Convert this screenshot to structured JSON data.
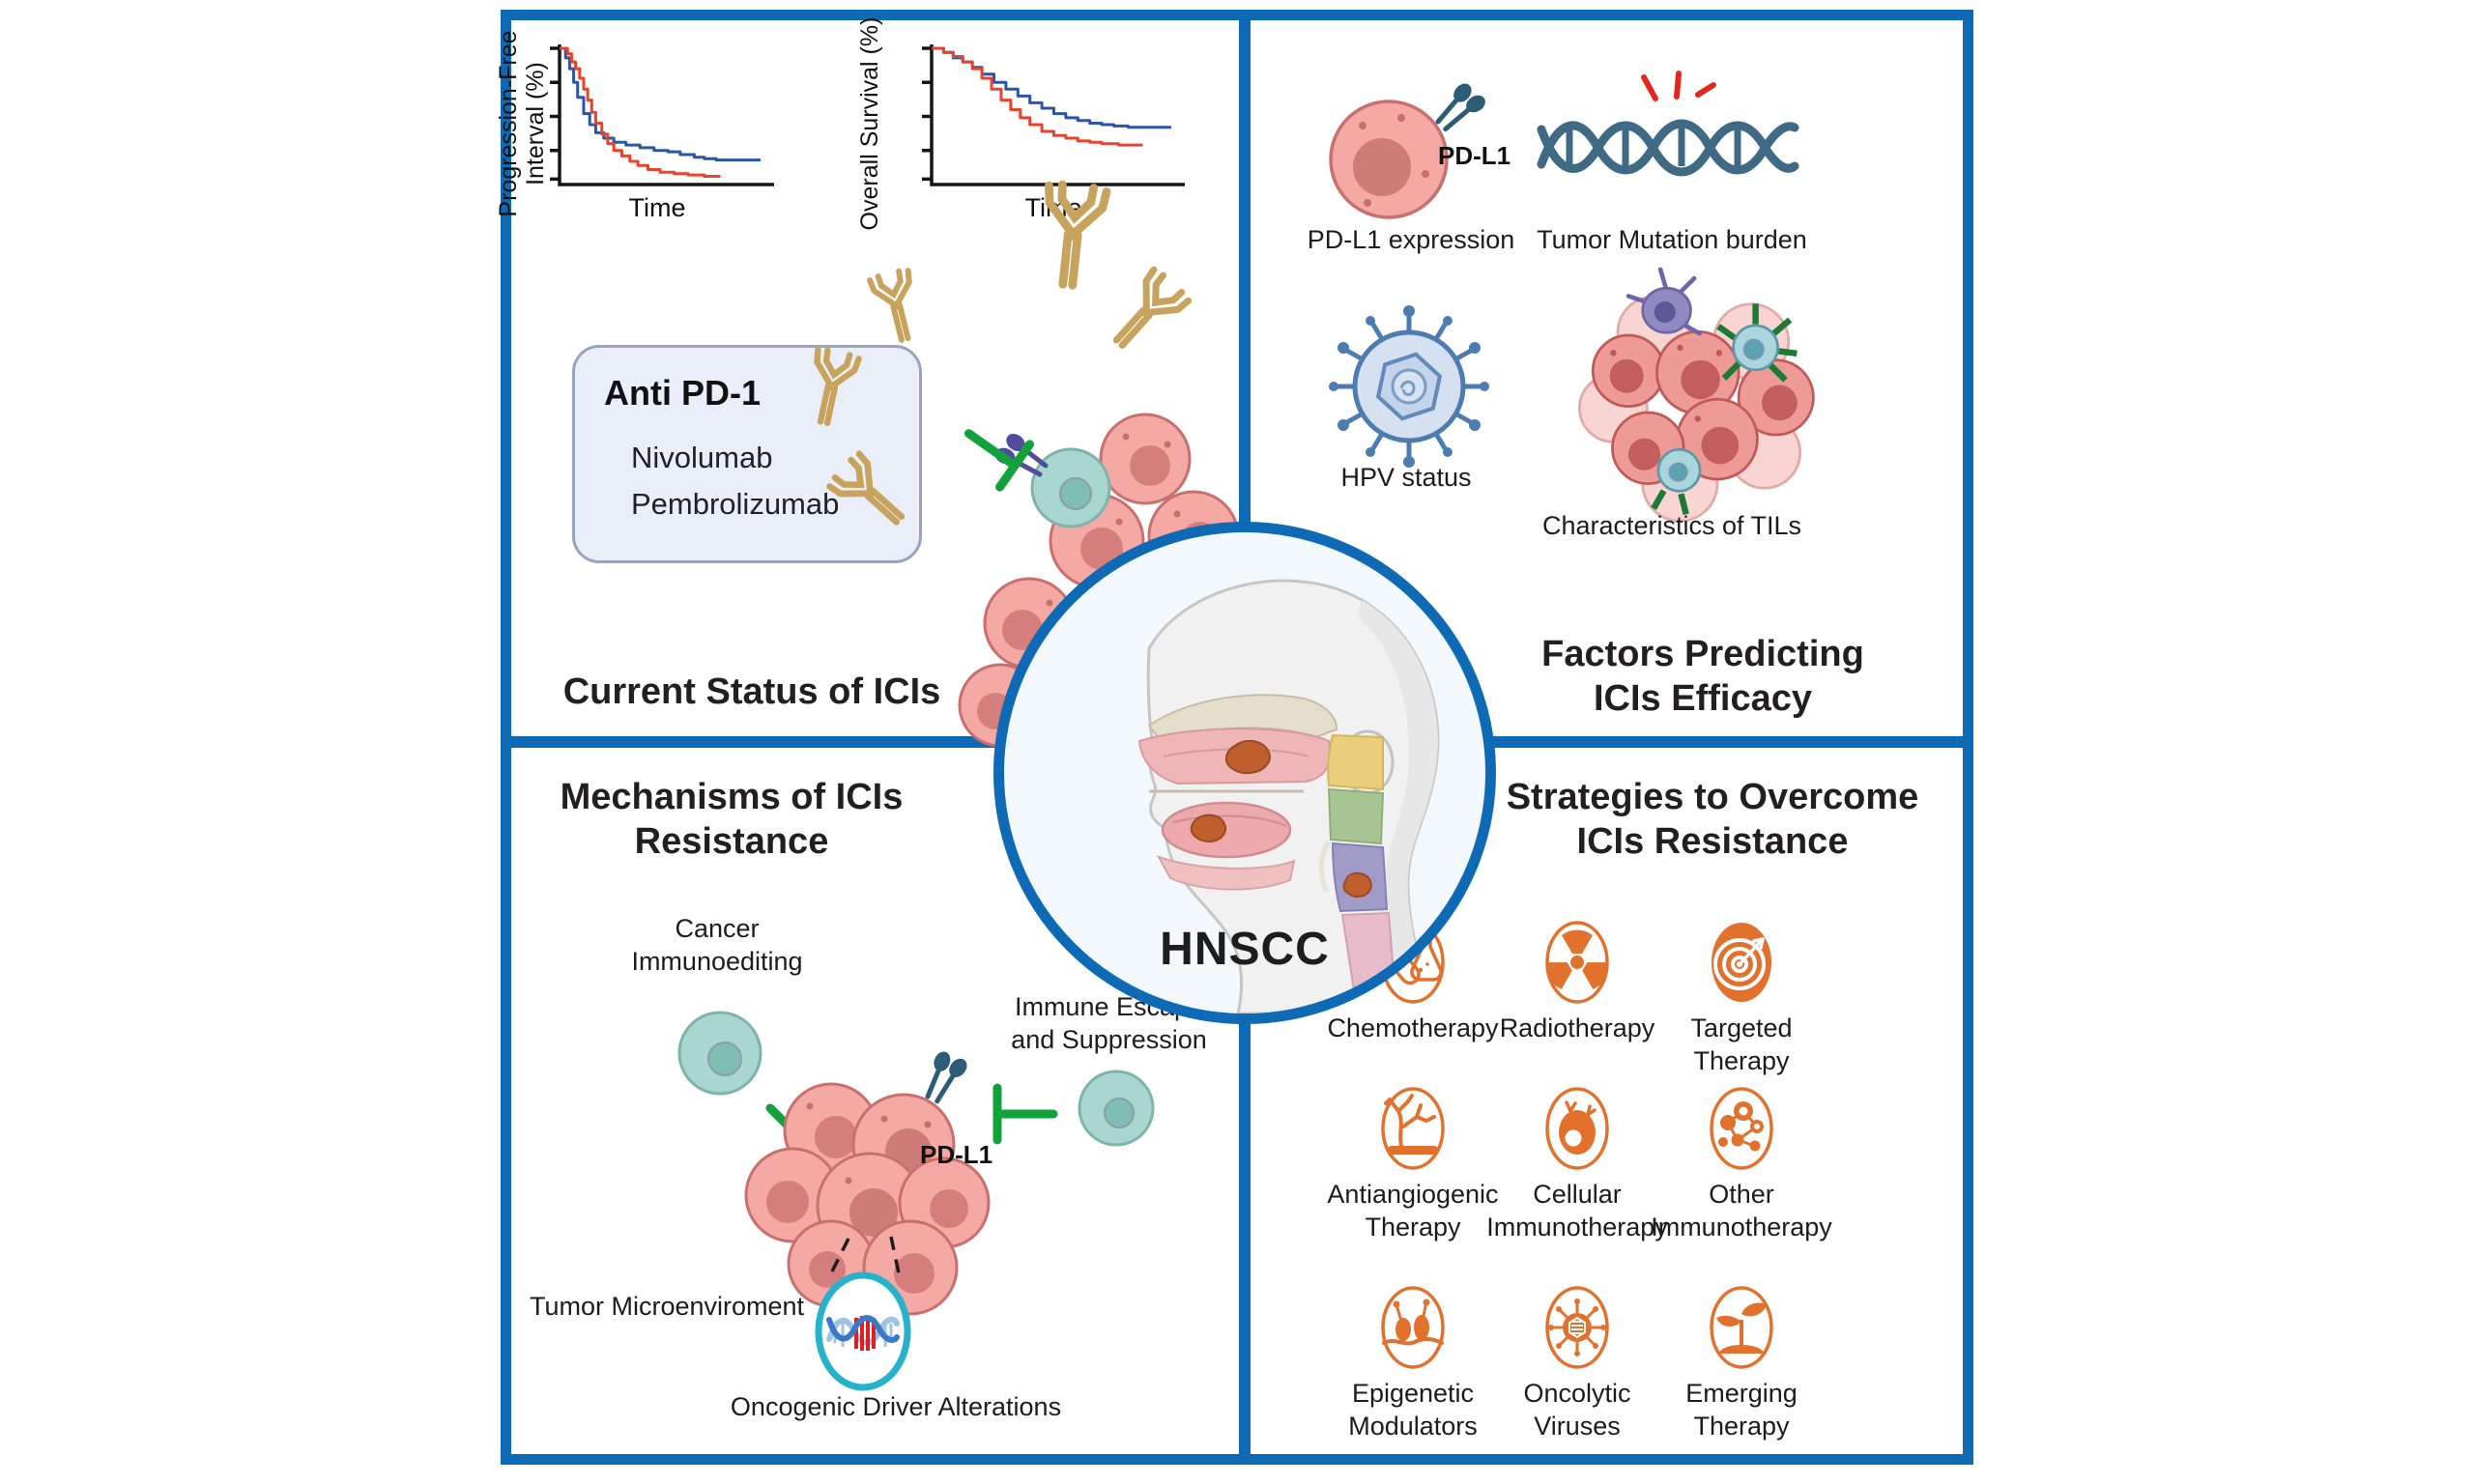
{
  "colors": {
    "frame_blue": "#0f6ab6",
    "accent_orange": "#e2712e",
    "inhibit_green": "#12a23c",
    "antibody_tan": "#c7a35d",
    "curve_blue": "#2b55a5",
    "curve_red": "#e9432d",
    "tumor_pink": "#f4a9a4",
    "tcell_teal": "#a9d6cf",
    "receptor_teal": "#2d5c77",
    "receptor_purple": "#4f4d9c",
    "dna_slate": "#3f6a85",
    "hpv_blue": "#4d7cb0",
    "ring_cyan": "#27b2cc"
  },
  "center": {
    "label": "HNSCC"
  },
  "top_left": {
    "title": "Current Status of ICIs",
    "anti_pd1": {
      "title": "Anti PD-1",
      "drugs": [
        "Nivolumab",
        "Pembrolizumab"
      ]
    }
  },
  "top_right": {
    "title": "Factors Predicting\nICIs Efficacy",
    "pdl1_tag": "PD-L1",
    "factors": [
      "PD-L1 expression",
      "Tumor Mutation burden",
      "HPV status",
      "Characteristics of TILs"
    ]
  },
  "bottom_left": {
    "title": "Mechanisms of ICIs\nResistance",
    "pdl1_tag": "PD-L1",
    "nodes": [
      "Cancer\nImmunoediting",
      "Immune Escape\nand Suppression",
      "Tumor Microenviroment",
      "Oncogenic Driver Alterations"
    ]
  },
  "bottom_right": {
    "title": "Strategies to Overcome\nICIs Resistance",
    "strategies": [
      "Chemotherapy",
      "Radiotherapy",
      "Targeted Therapy",
      "Antiangiogenic\nTherapy",
      "Cellular\nImmunotherapy",
      "Other\nImmunotherapy",
      "Epigenetic\nModulators",
      "Oncolytic\nViruses",
      "Emerging\nTherapy"
    ]
  },
  "chart_data": [
    {
      "type": "line",
      "subtype": "kaplan-meier",
      "title": "",
      "ylabel": "Progression-Free\nInterval (%)",
      "xlabel": "Time",
      "xlim": [
        0,
        100
      ],
      "ylim": [
        0,
        100
      ],
      "grid": false,
      "legend": "none",
      "series": [
        {
          "name": "arm-blue",
          "color": "#2b55a5",
          "points": [
            [
              0,
              100
            ],
            [
              3,
              93
            ],
            [
              5,
              85
            ],
            [
              7,
              75
            ],
            [
              9,
              64
            ],
            [
              12,
              52
            ],
            [
              15,
              44
            ],
            [
              18,
              38
            ],
            [
              22,
              34
            ],
            [
              27,
              31
            ],
            [
              33,
              29
            ],
            [
              40,
              27
            ],
            [
              47,
              25
            ],
            [
              54,
              24
            ],
            [
              60,
              22
            ],
            [
              67,
              20
            ],
            [
              72,
              19
            ],
            [
              78,
              18
            ],
            [
              84,
              18
            ],
            [
              100,
              18
            ]
          ]
        },
        {
          "name": "arm-red",
          "color": "#e9432d",
          "points": [
            [
              0,
              100
            ],
            [
              4,
              96
            ],
            [
              6,
              90
            ],
            [
              8,
              85
            ],
            [
              10,
              78
            ],
            [
              12,
              70
            ],
            [
              14,
              62
            ],
            [
              16,
              53
            ],
            [
              18,
              45
            ],
            [
              21,
              37
            ],
            [
              24,
              30
            ],
            [
              27,
              25
            ],
            [
              31,
              21
            ],
            [
              35,
              17
            ],
            [
              39,
              14
            ],
            [
              44,
              11
            ],
            [
              50,
              9
            ],
            [
              57,
              8
            ],
            [
              64,
              7
            ],
            [
              72,
              6
            ],
            [
              80,
              6
            ]
          ]
        }
      ]
    },
    {
      "type": "line",
      "subtype": "kaplan-meier",
      "title": "",
      "ylabel": "Overall Survival (%)",
      "xlabel": "Time",
      "xlim": [
        0,
        100
      ],
      "ylim": [
        0,
        100
      ],
      "grid": false,
      "legend": "none",
      "series": [
        {
          "name": "arm-blue",
          "color": "#2b55a5",
          "points": [
            [
              0,
              100
            ],
            [
              5,
              97
            ],
            [
              9,
              93
            ],
            [
              13,
              90
            ],
            [
              17,
              86
            ],
            [
              21,
              81
            ],
            [
              26,
              75
            ],
            [
              31,
              70
            ],
            [
              36,
              65
            ],
            [
              41,
              60
            ],
            [
              46,
              56
            ],
            [
              51,
              52
            ],
            [
              56,
              49
            ],
            [
              61,
              47
            ],
            [
              66,
              45
            ],
            [
              71,
              44
            ],
            [
              76,
              43
            ],
            [
              82,
              42
            ],
            [
              100,
              42
            ]
          ]
        },
        {
          "name": "arm-red",
          "color": "#e9432d",
          "points": [
            [
              0,
              100
            ],
            [
              5,
              97
            ],
            [
              9,
              94
            ],
            [
              13,
              90
            ],
            [
              17,
              85
            ],
            [
              21,
              78
            ],
            [
              25,
              70
            ],
            [
              29,
              62
            ],
            [
              33,
              55
            ],
            [
              37,
              49
            ],
            [
              41,
              44
            ],
            [
              46,
              39
            ],
            [
              51,
              36
            ],
            [
              56,
              34
            ],
            [
              61,
              32
            ],
            [
              66,
              31
            ],
            [
              71,
              30
            ],
            [
              78,
              29
            ],
            [
              88,
              29
            ]
          ]
        }
      ]
    }
  ]
}
